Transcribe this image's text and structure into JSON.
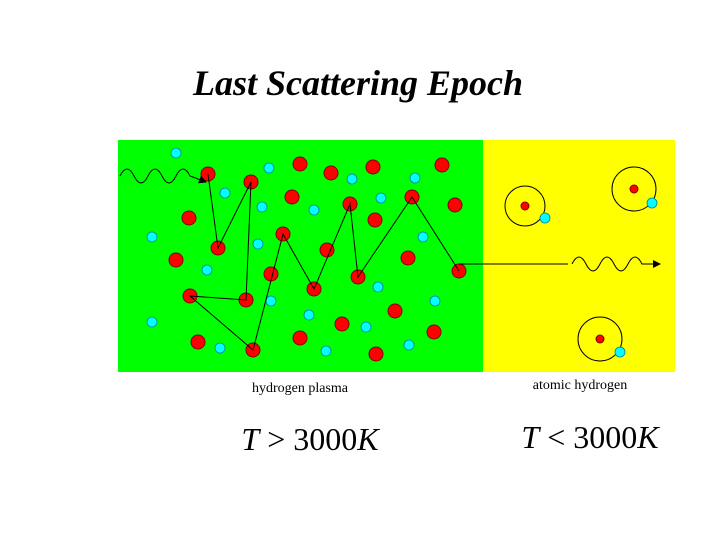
{
  "title": "Last Scattering Epoch",
  "panels": [
    {
      "label": "hydrogen plasma",
      "condition": {
        "symbol": "T",
        "relation": ">",
        "value": "3000",
        "unit": "K"
      }
    },
    {
      "label": "atomic hydrogen",
      "condition": {
        "symbol": "T",
        "relation": "<",
        "value": "3000",
        "unit": "K"
      }
    }
  ]
}
